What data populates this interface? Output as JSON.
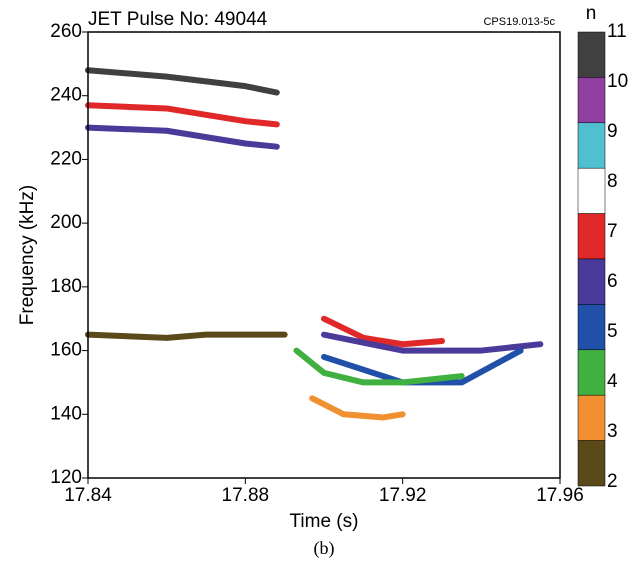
{
  "chart_data": {
    "type": "line",
    "title": "JET Pulse No: 49044",
    "annotation": "CPS19.013-5c",
    "xlabel": "Time (s)",
    "ylabel": "Frequency (kHz)",
    "caption": "(b)",
    "xlim": [
      17.84,
      17.96
    ],
    "xticks": [
      17.84,
      17.88,
      17.92,
      17.96
    ],
    "ylim": [
      120,
      260
    ],
    "yticks": [
      120,
      140,
      160,
      180,
      200,
      220,
      240,
      260
    ],
    "colorbar": {
      "title": "n",
      "levels": [
        2,
        3,
        4,
        5,
        6,
        7,
        8,
        9,
        10,
        11
      ],
      "colors": [
        "#5a4a1a",
        "#f09030",
        "#40b040",
        "#2050a8",
        "#4a3a9a",
        "#e02828",
        "#ffffff",
        "#50c0d0",
        "#9040a0",
        "#404040"
      ]
    },
    "series": [
      {
        "mode": 11,
        "x": [
          17.84,
          17.86,
          17.88,
          17.888
        ],
        "values": [
          248,
          246,
          243,
          241
        ]
      },
      {
        "mode": 7,
        "x": [
          17.84,
          17.86,
          17.88,
          17.888
        ],
        "values": [
          237,
          236,
          232,
          231
        ]
      },
      {
        "mode": 6,
        "x": [
          17.84,
          17.86,
          17.88,
          17.888
        ],
        "values": [
          230,
          229,
          225,
          224
        ]
      },
      {
        "mode": 2,
        "x": [
          17.84,
          17.86,
          17.87,
          17.89
        ],
        "values": [
          165,
          164,
          165,
          165
        ]
      },
      {
        "mode": 7,
        "x": [
          17.9,
          17.91,
          17.92,
          17.93
        ],
        "values": [
          170,
          164,
          162,
          163
        ]
      },
      {
        "mode": 6,
        "x": [
          17.9,
          17.92,
          17.94,
          17.955
        ],
        "values": [
          165,
          160,
          160,
          162
        ]
      },
      {
        "mode": 5,
        "x": [
          17.9,
          17.92,
          17.935,
          17.95
        ],
        "values": [
          158,
          150,
          150,
          160
        ]
      },
      {
        "mode": 4,
        "x": [
          17.893,
          17.9,
          17.91,
          17.92,
          17.935
        ],
        "values": [
          160,
          153,
          150,
          150,
          152
        ]
      },
      {
        "mode": 3,
        "x": [
          17.897,
          17.905,
          17.915,
          17.92
        ],
        "values": [
          145,
          140,
          139,
          140
        ]
      }
    ]
  }
}
